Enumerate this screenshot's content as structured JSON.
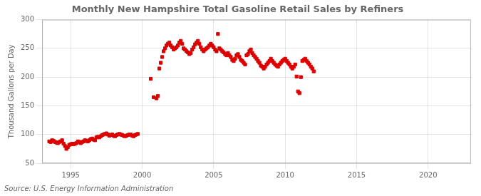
{
  "chart_data": {
    "type": "scatter",
    "title": "Monthly New Hampshire Total Gasoline Retail Sales by Refiners",
    "ylabel": "Thousand Gallons per Day",
    "annotation": "Source: U.S. Energy Information Administration",
    "color": "#dd0000",
    "marker": "square",
    "grid": true,
    "xlim": [
      1993,
      2023
    ],
    "ylim": [
      50,
      300
    ],
    "xticks": [
      1995,
      2000,
      2005,
      2010,
      2015,
      2020
    ],
    "yticks": [
      50,
      100,
      150,
      200,
      250,
      300
    ],
    "x": [
      1993.5,
      1993.6,
      1993.7,
      1993.8,
      1993.9,
      1994.0,
      1994.1,
      1994.2,
      1994.3,
      1994.4,
      1994.5,
      1994.6,
      1994.7,
      1994.8,
      1994.9,
      1995.0,
      1995.1,
      1995.2,
      1995.3,
      1995.4,
      1995.5,
      1995.6,
      1995.7,
      1995.8,
      1995.9,
      1996.0,
      1996.1,
      1996.2,
      1996.3,
      1996.4,
      1996.5,
      1996.6,
      1996.7,
      1996.8,
      1996.9,
      1997.0,
      1997.1,
      1997.2,
      1997.3,
      1997.4,
      1997.5,
      1997.6,
      1997.7,
      1997.8,
      1997.9,
      1998.0,
      1998.1,
      1998.2,
      1998.3,
      1998.4,
      1998.5,
      1998.6,
      1998.7,
      1998.8,
      1998.9,
      1999.0,
      1999.1,
      1999.2,
      1999.3,
      1999.4,
      1999.5,
      1999.6,
      1999.7,
      2000.6,
      2000.8,
      2001.0,
      2001.1,
      2001.2,
      2001.3,
      2001.4,
      2001.5,
      2001.6,
      2001.7,
      2001.8,
      2001.9,
      2002.0,
      2002.1,
      2002.2,
      2002.3,
      2002.4,
      2002.5,
      2002.6,
      2002.7,
      2002.8,
      2002.9,
      2003.0,
      2003.1,
      2003.2,
      2003.3,
      2003.4,
      2003.5,
      2003.6,
      2003.7,
      2003.8,
      2003.9,
      2004.0,
      2004.1,
      2004.2,
      2004.3,
      2004.4,
      2004.5,
      2004.6,
      2004.7,
      2004.8,
      2004.9,
      2005.0,
      2005.1,
      2005.2,
      2005.3,
      2005.4,
      2005.5,
      2005.6,
      2005.7,
      2005.8,
      2005.9,
      2006.0,
      2006.1,
      2006.2,
      2006.3,
      2006.4,
      2006.5,
      2006.6,
      2006.7,
      2006.8,
      2006.9,
      2007.0,
      2007.1,
      2007.2,
      2007.3,
      2007.4,
      2007.5,
      2007.6,
      2007.7,
      2007.8,
      2007.9,
      2008.0,
      2008.1,
      2008.2,
      2008.3,
      2008.4,
      2008.5,
      2008.6,
      2008.7,
      2008.8,
      2008.9,
      2009.0,
      2009.1,
      2009.2,
      2009.3,
      2009.4,
      2009.5,
      2009.6,
      2009.7,
      2009.8,
      2009.9,
      2010.0,
      2010.1,
      2010.2,
      2010.3,
      2010.4,
      2010.5,
      2010.6,
      2010.7,
      2010.8,
      2010.9,
      2011.0,
      2011.1,
      2011.2,
      2011.3,
      2011.4,
      2011.5,
      2011.6,
      2011.7,
      2011.8,
      2011.9,
      2012.0
    ],
    "values": [
      88,
      87,
      90,
      89,
      87,
      86,
      85,
      87,
      88,
      90,
      84,
      80,
      75,
      78,
      82,
      83,
      84,
      83,
      84,
      85,
      88,
      87,
      85,
      87,
      88,
      90,
      89,
      88,
      90,
      92,
      93,
      91,
      90,
      95,
      96,
      95,
      97,
      99,
      100,
      101,
      102,
      100,
      98,
      99,
      100,
      98,
      97,
      99,
      100,
      101,
      100,
      99,
      98,
      97,
      98,
      99,
      100,
      100,
      98,
      97,
      99,
      100,
      101,
      197,
      165,
      163,
      167,
      215,
      225,
      235,
      245,
      250,
      255,
      258,
      260,
      255,
      252,
      248,
      250,
      252,
      255,
      260,
      263,
      258,
      250,
      248,
      245,
      243,
      240,
      242,
      248,
      252,
      257,
      260,
      263,
      258,
      252,
      248,
      245,
      248,
      250,
      252,
      255,
      258,
      255,
      252,
      248,
      245,
      275,
      250,
      248,
      245,
      243,
      240,
      238,
      242,
      238,
      235,
      230,
      228,
      232,
      238,
      240,
      235,
      230,
      228,
      225,
      222,
      238,
      240,
      245,
      248,
      242,
      238,
      235,
      232,
      228,
      225,
      220,
      218,
      215,
      218,
      222,
      225,
      228,
      232,
      228,
      225,
      222,
      220,
      218,
      222,
      225,
      228,
      230,
      232,
      228,
      225,
      222,
      218,
      215,
      218,
      222,
      201,
      175,
      172,
      200,
      228,
      230,
      232,
      228,
      225,
      222,
      218,
      215,
      210
    ]
  }
}
